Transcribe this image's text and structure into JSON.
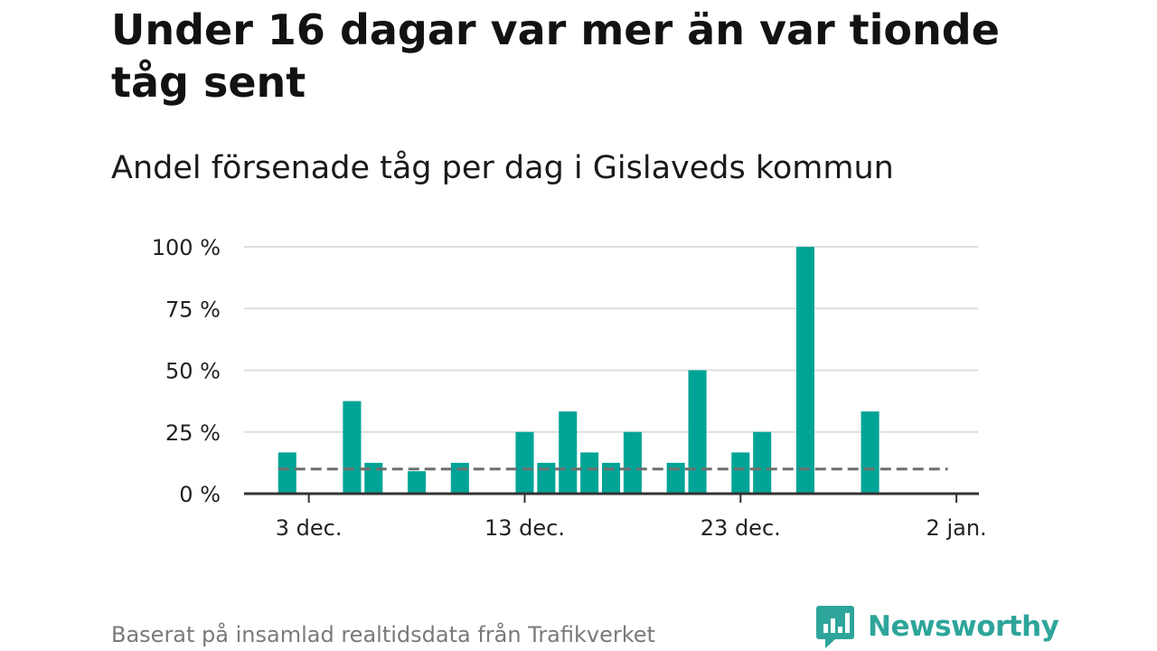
{
  "title": "Under 16 dagar var mer än var tionde tåg sent",
  "subtitle": "Andel försenade tåg per dag i Gislaveds kommun",
  "source": "Baserat på insamlad realtidsdata från Trafikverket",
  "brand": {
    "name": "Newsworthy",
    "color": "#2ea59a"
  },
  "chart_data": {
    "type": "bar",
    "title": "Under 16 dagar var mer än var tionde tåg sent",
    "subtitle": "Andel försenade tåg per dag i Gislaveds kommun",
    "xlabel": "",
    "ylabel": "",
    "x_axis": {
      "domain_days_from_start": [
        -1,
        33
      ],
      "ticks": [
        {
          "day": 2,
          "label": "3 dec."
        },
        {
          "day": 12,
          "label": "13 dec."
        },
        {
          "day": 22,
          "label": "23 dec."
        },
        {
          "day": 32,
          "label": "2 jan."
        }
      ]
    },
    "ylim": [
      0,
      100
    ],
    "y_ticks": [
      {
        "value": 0,
        "label": "0 %"
      },
      {
        "value": 25,
        "label": "25 %"
      },
      {
        "value": 50,
        "label": "50 %"
      },
      {
        "value": 75,
        "label": "75 %"
      },
      {
        "value": 100,
        "label": "100 %"
      }
    ],
    "bar_color": "#00a497",
    "values_by_day": [
      {
        "day": 1,
        "date": "2 dec.",
        "value": 16.7
      },
      {
        "day": 4,
        "date": "5 dec.",
        "value": 37.5
      },
      {
        "day": 5,
        "date": "6 dec.",
        "value": 12.5
      },
      {
        "day": 7,
        "date": "8 dec.",
        "value": 9.1
      },
      {
        "day": 9,
        "date": "10 dec.",
        "value": 12.5
      },
      {
        "day": 12,
        "date": "13 dec.",
        "value": 25
      },
      {
        "day": 13,
        "date": "14 dec.",
        "value": 12.5
      },
      {
        "day": 14,
        "date": "15 dec.",
        "value": 33.3
      },
      {
        "day": 15,
        "date": "16 dec.",
        "value": 16.7
      },
      {
        "day": 16,
        "date": "17 dec.",
        "value": 12.5
      },
      {
        "day": 17,
        "date": "18 dec.",
        "value": 25
      },
      {
        "day": 19,
        "date": "20 dec.",
        "value": 12.5
      },
      {
        "day": 20,
        "date": "21 dec.",
        "value": 50
      },
      {
        "day": 22,
        "date": "23 dec.",
        "value": 16.7
      },
      {
        "day": 23,
        "date": "24 dec.",
        "value": 25
      },
      {
        "day": 25,
        "date": "26 dec.",
        "value": 100
      },
      {
        "day": 28,
        "date": "29 dec.",
        "value": 33.3
      }
    ],
    "reference_line": {
      "value": 10,
      "style": "dashed",
      "from_day": 1,
      "to_day": 31
    },
    "grid": true,
    "legend": "none"
  }
}
